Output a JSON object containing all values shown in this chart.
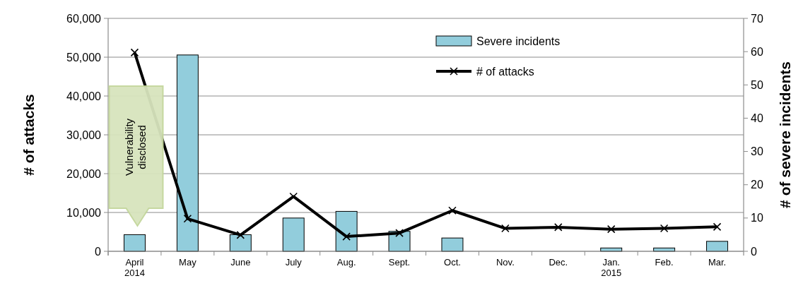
{
  "chart_data": {
    "type": "bar",
    "categories": [
      "April\n2014",
      "May",
      "June",
      "July",
      "Aug.",
      "Sept.",
      "Oct.",
      "Nov.",
      "Dec.",
      "Jan.\n2015",
      "Feb.",
      "Mar."
    ],
    "series": [
      {
        "name": "Severe incidents",
        "axis": "y2",
        "color": "#92cddc",
        "values": [
          5,
          59,
          5,
          10,
          12,
          6,
          4,
          0,
          0,
          1,
          1,
          3
        ]
      },
      {
        "name": "# of attacks",
        "type": "line",
        "axis": "y",
        "color": "#000000",
        "marker": "cross",
        "values": [
          51200,
          8400,
          4200,
          14100,
          3800,
          4700,
          10500,
          5900,
          6200,
          5700,
          5900,
          6300
        ]
      }
    ],
    "ylabel": "# of attacks",
    "y2label": "# of severe incidents",
    "ylim": [
      0,
      60000
    ],
    "yticks": [
      {
        "value": 0,
        "label": "0"
      },
      {
        "value": 10000,
        "label": "10,000"
      },
      {
        "value": 20000,
        "label": "20,000"
      },
      {
        "value": 30000,
        "label": "30,000"
      },
      {
        "value": 40000,
        "label": "40,000"
      },
      {
        "value": 50000,
        "label": "50,000"
      },
      {
        "value": 60000,
        "label": "60,000"
      }
    ],
    "y2lim": [
      0,
      70
    ],
    "y2ticks": [
      0,
      10,
      20,
      30,
      40,
      50,
      60,
      70
    ],
    "grid": "y",
    "legend": "top",
    "annotations": [
      "Vulnerability\ndisclosed"
    ]
  }
}
